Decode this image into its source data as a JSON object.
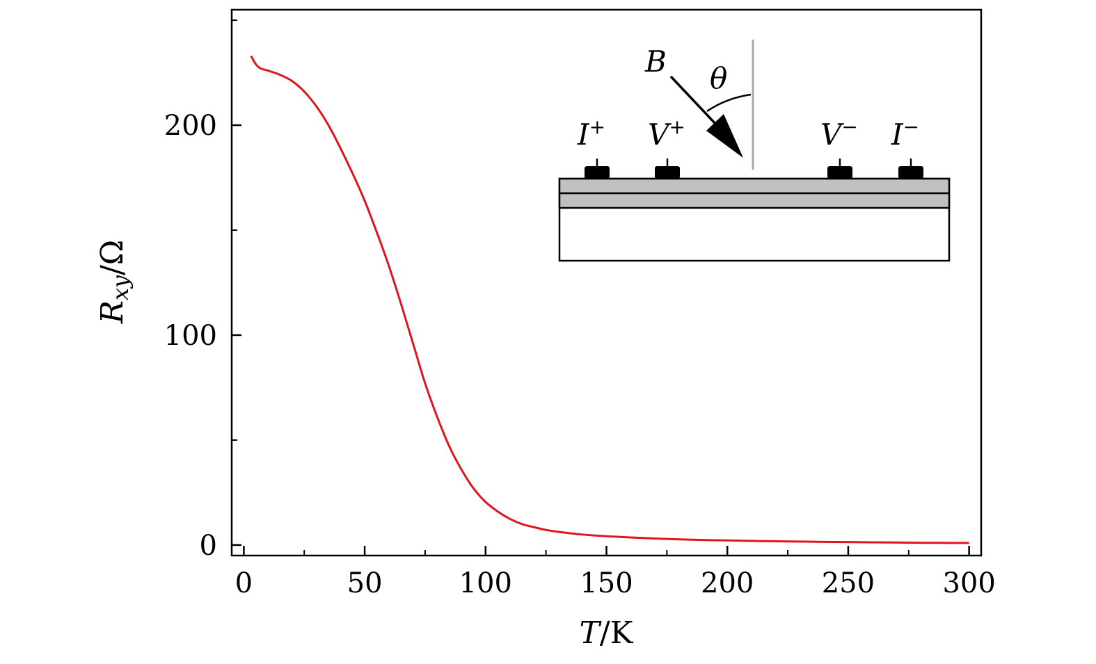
{
  "chart_data": {
    "type": "line",
    "title": "",
    "xlabel": {
      "var": "T",
      "unit": "K"
    },
    "ylabel": {
      "var": "R",
      "sub": "xy",
      "unit": "Ω"
    },
    "xlim": [
      -5,
      305
    ],
    "ylim": [
      -5,
      255
    ],
    "x_ticks": [
      0,
      50,
      100,
      150,
      200,
      250,
      300
    ],
    "x_tick_labels": [
      "0",
      "50",
      "100",
      "150",
      "200",
      "250",
      "300"
    ],
    "x_minor_ticks": [
      25,
      75,
      125,
      175,
      225,
      275
    ],
    "y_ticks": [
      0,
      100,
      200
    ],
    "y_tick_labels": [
      "0",
      "100",
      "200"
    ],
    "y_minor_ticks": [
      50,
      150,
      250
    ],
    "grid": false,
    "series": [
      {
        "color": "#e0141e",
        "x": [
          3,
          5,
          7,
          10,
          15,
          20,
          25,
          30,
          35,
          40,
          45,
          50,
          55,
          60,
          65,
          70,
          75,
          80,
          85,
          90,
          95,
          100,
          105,
          110,
          115,
          120,
          125,
          130,
          140,
          150,
          160,
          170,
          180,
          190,
          200,
          220,
          240,
          260,
          280,
          300
        ],
        "y": [
          233,
          229,
          227,
          226,
          224,
          221,
          216,
          209,
          200,
          189,
          177,
          164,
          149,
          133,
          115,
          96,
          77,
          61,
          47,
          36,
          27,
          20.5,
          16,
          12.5,
          10,
          8.5,
          7.2,
          6.3,
          5,
          4.2,
          3.6,
          3.1,
          2.7,
          2.4,
          2.2,
          1.8,
          1.5,
          1.3,
          1.1,
          1.0
        ]
      }
    ]
  },
  "inset": {
    "field_label": "B",
    "angle_label": "θ",
    "contacts": [
      {
        "var": "I",
        "sup": "+"
      },
      {
        "var": "V",
        "sup": "+"
      },
      {
        "var": "V",
        "sup": "−"
      },
      {
        "var": "I",
        "sup": "−"
      }
    ],
    "layer_color": "#c0c0c0",
    "normal_color": "#a8a8a8"
  }
}
